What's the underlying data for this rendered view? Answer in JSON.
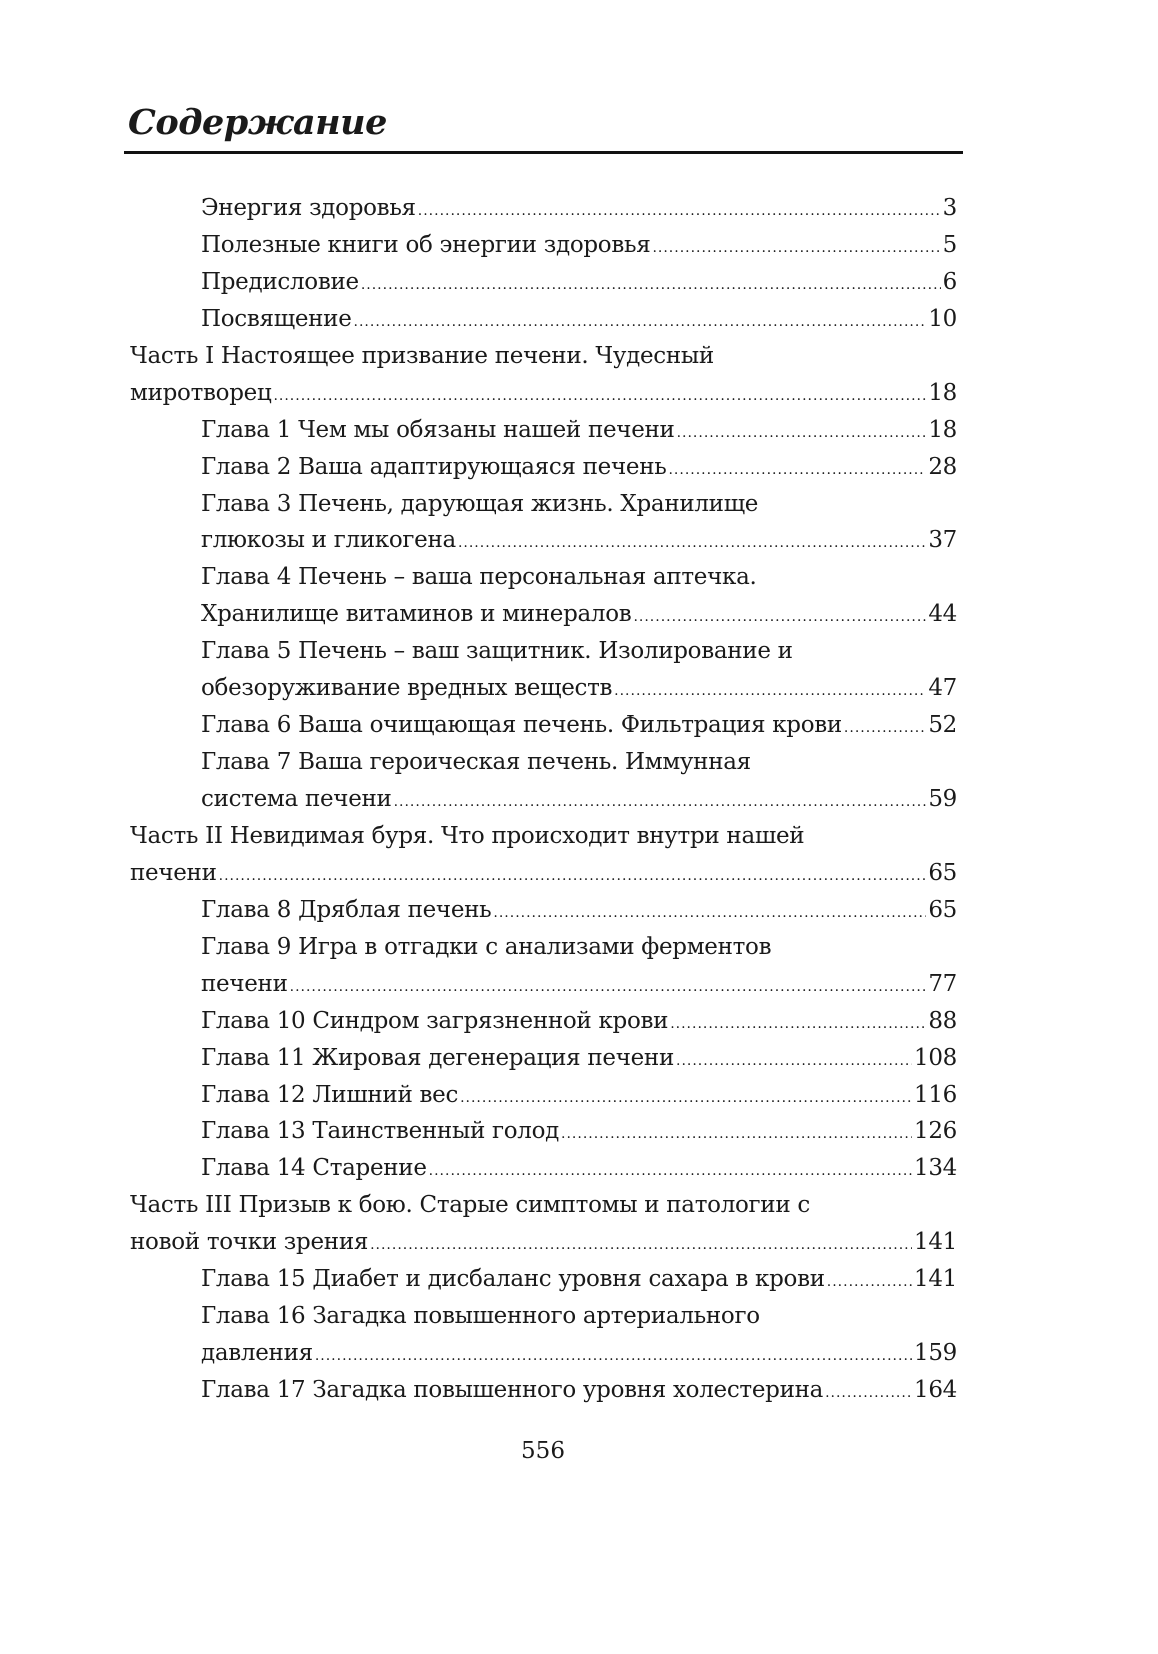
{
  "title": "Содержание",
  "page_number": "556",
  "entries": [
    {
      "level": "chapter",
      "lines": [
        "Энергия здоровья"
      ],
      "page": "3"
    },
    {
      "level": "chapter",
      "lines": [
        "Полезные книги об энергии здоровья"
      ],
      "page": "5"
    },
    {
      "level": "chapter",
      "lines": [
        "Предисловие"
      ],
      "page": "6"
    },
    {
      "level": "chapter",
      "lines": [
        "Посвящение"
      ],
      "page": "10"
    },
    {
      "level": "part",
      "lines": [
        "Часть I Настоящее призвание печени.  Чудесный",
        "миротворец"
      ],
      "page": "18"
    },
    {
      "level": "chapter",
      "lines": [
        "Глава 1 Чем мы обязаны нашей печени"
      ],
      "page": "18"
    },
    {
      "level": "chapter",
      "lines": [
        "Глава 2 Ваша адаптирующаяся печень"
      ],
      "page": "28"
    },
    {
      "level": "chapter",
      "lines": [
        "Глава 3 Печень, дарующая жизнь. Хранилище",
        "глюкозы и гликогена"
      ],
      "page": "37"
    },
    {
      "level": "chapter",
      "lines": [
        "Глава 4 Печень – ваша персональная аптечка.",
        "Хранилище витаминов и минералов"
      ],
      "page": "44"
    },
    {
      "level": "chapter",
      "lines": [
        "Глава 5 Печень – ваш защитник. Изолирование и",
        "обезоруживание вредных веществ"
      ],
      "page": "47"
    },
    {
      "level": "chapter",
      "lines": [
        "Глава 6 Ваша очищающая печень. Фильтрация крови"
      ],
      "page": "52"
    },
    {
      "level": "chapter",
      "lines": [
        "Глава 7 Ваша героическая печень.  Иммунная",
        "система печени"
      ],
      "page": "59"
    },
    {
      "level": "part",
      "lines": [
        "Часть II Невидимая буря. Что происходит внутри нашей",
        "печени"
      ],
      "page": "65"
    },
    {
      "level": "chapter",
      "lines": [
        "Глава 8 Дряблая печень"
      ],
      "page": "65"
    },
    {
      "level": "chapter",
      "lines": [
        "Глава 9 Игра в отгадки с анализами ферментов",
        "печени"
      ],
      "page": "77"
    },
    {
      "level": "chapter",
      "lines": [
        "Глава 10 Синдром загрязненной крови"
      ],
      "page": "88"
    },
    {
      "level": "chapter",
      "lines": [
        "Глава 11 Жировая дегенерация печени"
      ],
      "page": "108"
    },
    {
      "level": "chapter",
      "lines": [
        "Глава 12 Лишний вес"
      ],
      "page": "116"
    },
    {
      "level": "chapter",
      "lines": [
        "Глава 13 Таинственный голод"
      ],
      "page": "126"
    },
    {
      "level": "chapter",
      "lines": [
        "Глава 14 Старение"
      ],
      "page": "134"
    },
    {
      "level": "part",
      "lines": [
        "Часть III Призыв к бою. Старые симптомы и патологии с",
        "новой точки зрения"
      ],
      "page": "141"
    },
    {
      "level": "chapter",
      "lines": [
        "Глава 15 Диабет и дисбаланс уровня сахара в крови"
      ],
      "page": "141"
    },
    {
      "level": "chapter",
      "lines": [
        "Глава 16 Загадка повышенного артериального",
        "давления"
      ],
      "page": "159"
    },
    {
      "level": "chapter",
      "lines": [
        "Глава 17 Загадка повышенного уровня холестерина"
      ],
      "page": "164"
    }
  ]
}
